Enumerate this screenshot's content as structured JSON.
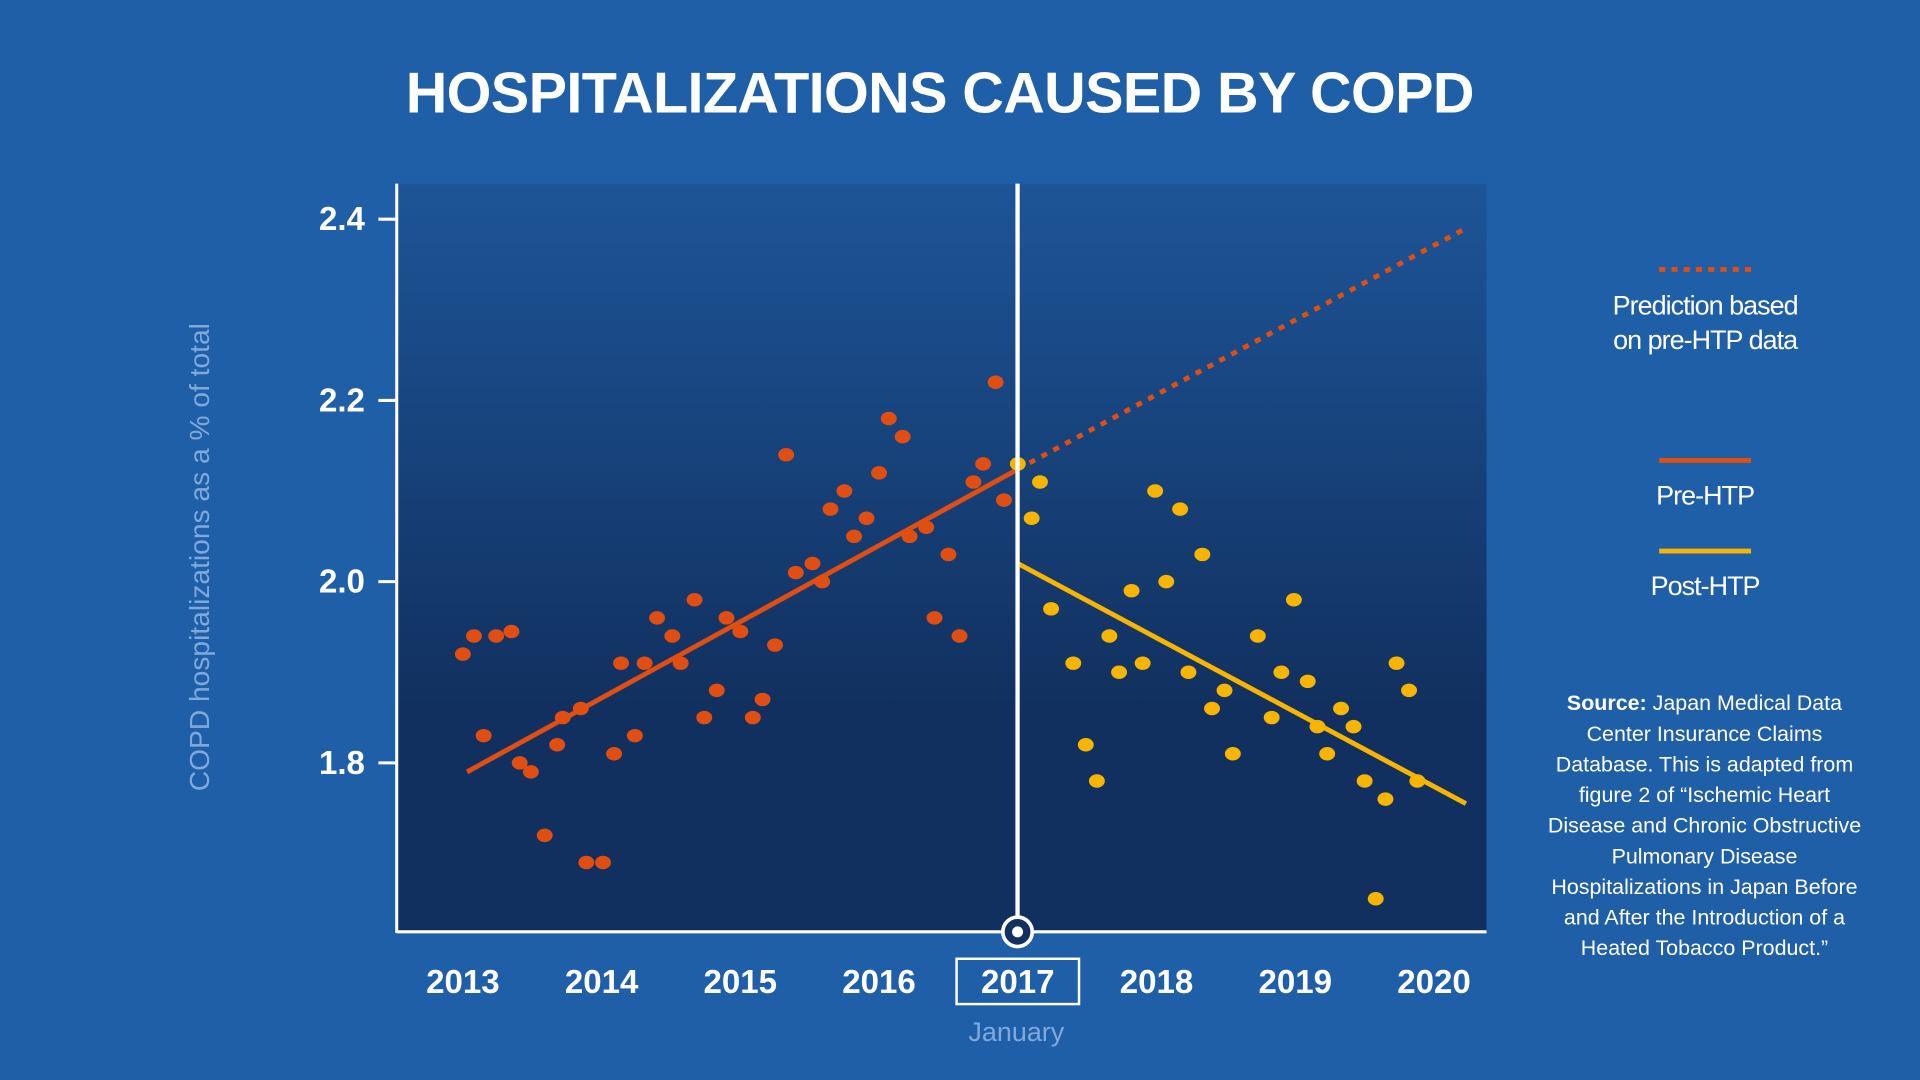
{
  "title": "HOSPITALIZATIONS CAUSED BY COPD",
  "legend": [
    {
      "label": "Prediction based on pre-HTP data",
      "style": "dotted",
      "color": "#e04e12"
    },
    {
      "label": "Pre-HTP",
      "style": "solid",
      "color": "#e04e12"
    },
    {
      "label": "Post-HTP",
      "style": "solid",
      "color": "#f7b500"
    }
  ],
  "source": {
    "bold": "Source:",
    "text": "Japan Medical Data Center Insurance Claims Database. This is adapted from figure 2 of “Ischemic Heart Disease and Chronic Obstructive Pulmonary Disease Hospitalizations in Japan Before and After the Introduction of a Heated Tobacco Product.”"
  },
  "colors": {
    "background": "#1f5fa8",
    "plot_top": "#1d5598",
    "plot_bottom": "#11305f",
    "pre": "#e04e12",
    "post": "#f7b500"
  },
  "chart_data": {
    "type": "scatter",
    "title": "HOSPITALIZATIONS CAUSED BY COPD",
    "xlabel": "",
    "ylabel": "COPD hospitalizations as a % of total",
    "xlim": [
      2012.5,
      2020.4
    ],
    "ylim": [
      1.62,
      2.44
    ],
    "x_ticks": [
      "2013",
      "2014",
      "2015",
      "2016",
      "2017",
      "2018",
      "2019",
      "2020"
    ],
    "y_ticks": [
      "1.8",
      "2.0",
      "2.2",
      "2.4"
    ],
    "highlight": {
      "x_tick": "2017",
      "annotation": "January"
    },
    "grid": false,
    "legend_position": "right",
    "series": [
      {
        "name": "Pre-HTP",
        "color": "#e04e12",
        "points": [
          [
            2013.0,
            1.92
          ],
          [
            2013.08,
            1.94
          ],
          [
            2013.15,
            1.83
          ],
          [
            2013.24,
            1.94
          ],
          [
            2013.35,
            1.945
          ],
          [
            2013.41,
            1.8
          ],
          [
            2013.49,
            1.79
          ],
          [
            2013.59,
            1.72
          ],
          [
            2013.68,
            1.82
          ],
          [
            2013.72,
            1.85
          ],
          [
            2013.85,
            1.86
          ],
          [
            2013.89,
            1.69
          ],
          [
            2014.01,
            1.69
          ],
          [
            2014.09,
            1.81
          ],
          [
            2014.14,
            1.91
          ],
          [
            2014.24,
            1.83
          ],
          [
            2014.31,
            1.91
          ],
          [
            2014.4,
            1.96
          ],
          [
            2014.51,
            1.94
          ],
          [
            2014.57,
            1.91
          ],
          [
            2014.67,
            1.98
          ],
          [
            2014.74,
            1.85
          ],
          [
            2014.83,
            1.88
          ],
          [
            2014.9,
            1.96
          ],
          [
            2015.0,
            1.945
          ],
          [
            2015.09,
            1.85
          ],
          [
            2015.16,
            1.87
          ],
          [
            2015.25,
            1.93
          ],
          [
            2015.33,
            2.14
          ],
          [
            2015.4,
            2.01
          ],
          [
            2015.52,
            2.02
          ],
          [
            2015.59,
            2.0
          ],
          [
            2015.65,
            2.08
          ],
          [
            2015.75,
            2.1
          ],
          [
            2015.82,
            2.05
          ],
          [
            2015.91,
            2.07
          ],
          [
            2016.0,
            2.12
          ],
          [
            2016.07,
            2.18
          ],
          [
            2016.17,
            2.16
          ],
          [
            2016.22,
            2.05
          ],
          [
            2016.34,
            2.06
          ],
          [
            2016.4,
            1.96
          ],
          [
            2016.5,
            2.03
          ],
          [
            2016.58,
            1.94
          ],
          [
            2016.68,
            2.11
          ],
          [
            2016.75,
            2.13
          ],
          [
            2016.84,
            2.22
          ],
          [
            2016.9,
            2.09
          ]
        ]
      },
      {
        "name": "Post-HTP",
        "color": "#f7b500",
        "points": [
          [
            2017.0,
            2.13
          ],
          [
            2017.1,
            2.07
          ],
          [
            2017.16,
            2.11
          ],
          [
            2017.24,
            1.97
          ],
          [
            2017.4,
            1.91
          ],
          [
            2017.49,
            1.82
          ],
          [
            2017.57,
            1.78
          ],
          [
            2017.66,
            1.94
          ],
          [
            2017.73,
            1.9
          ],
          [
            2017.82,
            1.99
          ],
          [
            2017.9,
            1.91
          ],
          [
            2017.99,
            2.1
          ],
          [
            2018.07,
            2.0
          ],
          [
            2018.17,
            2.08
          ],
          [
            2018.23,
            1.9
          ],
          [
            2018.33,
            2.03
          ],
          [
            2018.4,
            1.86
          ],
          [
            2018.49,
            1.88
          ],
          [
            2018.55,
            1.81
          ],
          [
            2018.73,
            1.94
          ],
          [
            2018.83,
            1.85
          ],
          [
            2018.9,
            1.9
          ],
          [
            2018.99,
            1.98
          ],
          [
            2019.09,
            1.89
          ],
          [
            2019.16,
            1.84
          ],
          [
            2019.23,
            1.81
          ],
          [
            2019.33,
            1.86
          ],
          [
            2019.42,
            1.84
          ],
          [
            2019.5,
            1.78
          ],
          [
            2019.58,
            1.65
          ],
          [
            2019.65,
            1.76
          ],
          [
            2019.73,
            1.91
          ],
          [
            2019.82,
            1.88
          ],
          [
            2019.88,
            1.78
          ]
        ]
      }
    ],
    "trend_lines": [
      {
        "name": "Pre-HTP",
        "style": "solid",
        "from": [
          2013.03,
          1.79
        ],
        "to": [
          2017.0,
          2.124
        ]
      },
      {
        "name": "Prediction based on pre-HTP data",
        "style": "dotted",
        "from": [
          2017.0,
          2.124
        ],
        "to": [
          2020.23,
          2.39
        ]
      },
      {
        "name": "Post-HTP",
        "style": "solid",
        "from": [
          2017.0,
          2.02
        ],
        "to": [
          2020.23,
          1.755
        ]
      }
    ]
  }
}
